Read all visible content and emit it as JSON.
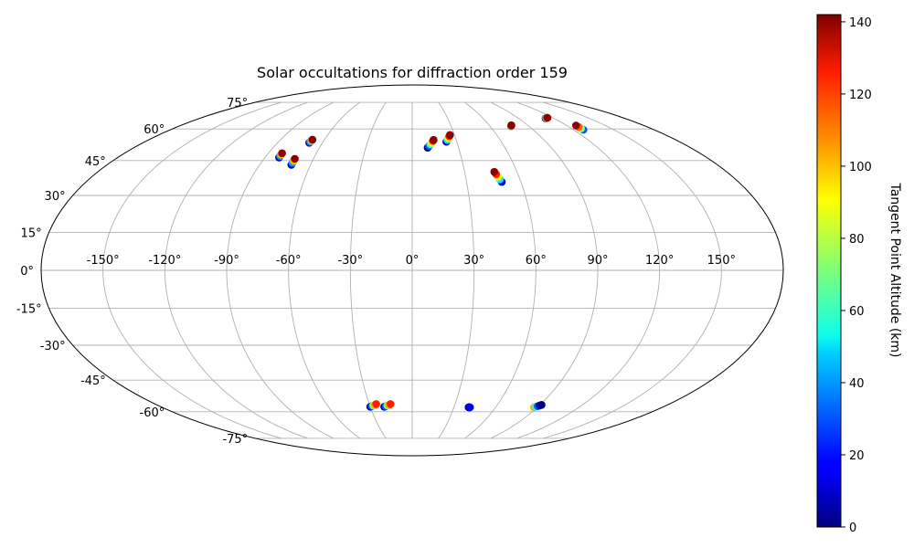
{
  "chart_data": {
    "type": "scatter",
    "projection": "mollweide",
    "title": "Solar occultations for diffraction order 159",
    "grid": true,
    "lon_tick_labels": [
      "-150°",
      "-120°",
      "-90°",
      "-60°",
      "-30°",
      "0°",
      "30°",
      "60°",
      "90°",
      "120°",
      "150°"
    ],
    "lat_tick_labels": [
      "-75°",
      "-60°",
      "-45°",
      "-30°",
      "-15°",
      "0°",
      "15°",
      "30°",
      "45°",
      "60°",
      "75°"
    ],
    "colorbar": {
      "label": "Tangent Point Altitude (km)",
      "colormap": "jet",
      "range": [
        0,
        142
      ],
      "tick_labels": [
        "0",
        "20",
        "40",
        "60",
        "80",
        "100",
        "120",
        "140"
      ]
    },
    "series": [
      {
        "x": [
          -81.4,
          -81.4,
          -81.4,
          -81.4
        ],
        "y": [
          46.4,
          47.1,
          47.7,
          48.3
        ],
        "c": [
          5,
          40,
          100,
          140
        ]
      },
      {
        "x": [
          -71.3,
          -71.3,
          -71.3,
          -71.3
        ],
        "y": [
          43.1,
          44.0,
          44.9,
          45.8
        ],
        "c": [
          5,
          40,
          100,
          140
        ]
      },
      {
        "x": [
          -68.8,
          -68.6,
          -68.4,
          -68.2
        ],
        "y": [
          53.2,
          53.7,
          54.2,
          54.7
        ],
        "c": [
          5,
          40,
          100,
          140
        ]
      },
      {
        "x": [
          10.0,
          11.0,
          12.0,
          13.0,
          14.0,
          14.6
        ],
        "y": [
          50.9,
          51.7,
          52.5,
          53.3,
          54.1,
          54.6
        ],
        "c": [
          0,
          30,
          60,
          90,
          120,
          140
        ]
      },
      {
        "x": [
          23.0,
          24.0,
          25.0,
          26.0,
          26.8
        ],
        "y": [
          53.7,
          54.6,
          55.5,
          56.4,
          57.0
        ],
        "c": [
          10,
          50,
          90,
          120,
          140
        ]
      },
      {
        "x": [
          49.4,
          48.8,
          48.2,
          47.6,
          47.0
        ],
        "y": [
          35.7,
          36.8,
          37.9,
          39.0,
          40.0
        ],
        "c": [
          10,
          50,
          90,
          120,
          140
        ]
      },
      {
        "x": [
          76.0,
          76.4,
          76.8,
          77.2
        ],
        "y": [
          61.3,
          61.5,
          61.7,
          61.9
        ],
        "c": [
          40,
          90,
          120,
          140
        ]
      },
      {
        "x": [
          113.0,
          113.8,
          114.6,
          115.4
        ],
        "y": [
          65.6,
          65.7,
          65.8,
          65.9
        ],
        "c": [
          10,
          60,
          110,
          140
        ]
      },
      {
        "x": [
          127.3,
          127.3,
          127.3,
          127.3
        ],
        "y": [
          59.6,
          60.3,
          61.0,
          61.8
        ],
        "c": [
          30,
          70,
          110,
          140
        ]
      },
      {
        "x": [
          -30.0,
          -28.8,
          -27.6,
          -26.4,
          -25.2
        ],
        "y": [
          -57.5,
          -57.2,
          -56.9,
          -56.6,
          -56.2
        ],
        "c": [
          0,
          30,
          70,
          100,
          120
        ]
      },
      {
        "x": [
          -20.0,
          -18.8,
          -17.6,
          -16.4,
          -15.2
        ],
        "y": [
          -57.5,
          -57.2,
          -56.9,
          -56.6,
          -56.2
        ],
        "c": [
          0,
          30,
          70,
          100,
          120
        ]
      },
      {
        "x": [
          40.6,
          41.0,
          41.3,
          41.6
        ],
        "y": [
          -57.8,
          -57.8,
          -57.8,
          -57.8
        ],
        "c": [
          0,
          5,
          10,
          15
        ]
      },
      {
        "x": [
          87.6,
          88.5,
          89.4,
          90.3,
          91.2
        ],
        "y": [
          -57.8,
          -57.5,
          -57.2,
          -56.9,
          -56.6
        ],
        "c": [
          100,
          60,
          30,
          10,
          0
        ]
      }
    ]
  }
}
